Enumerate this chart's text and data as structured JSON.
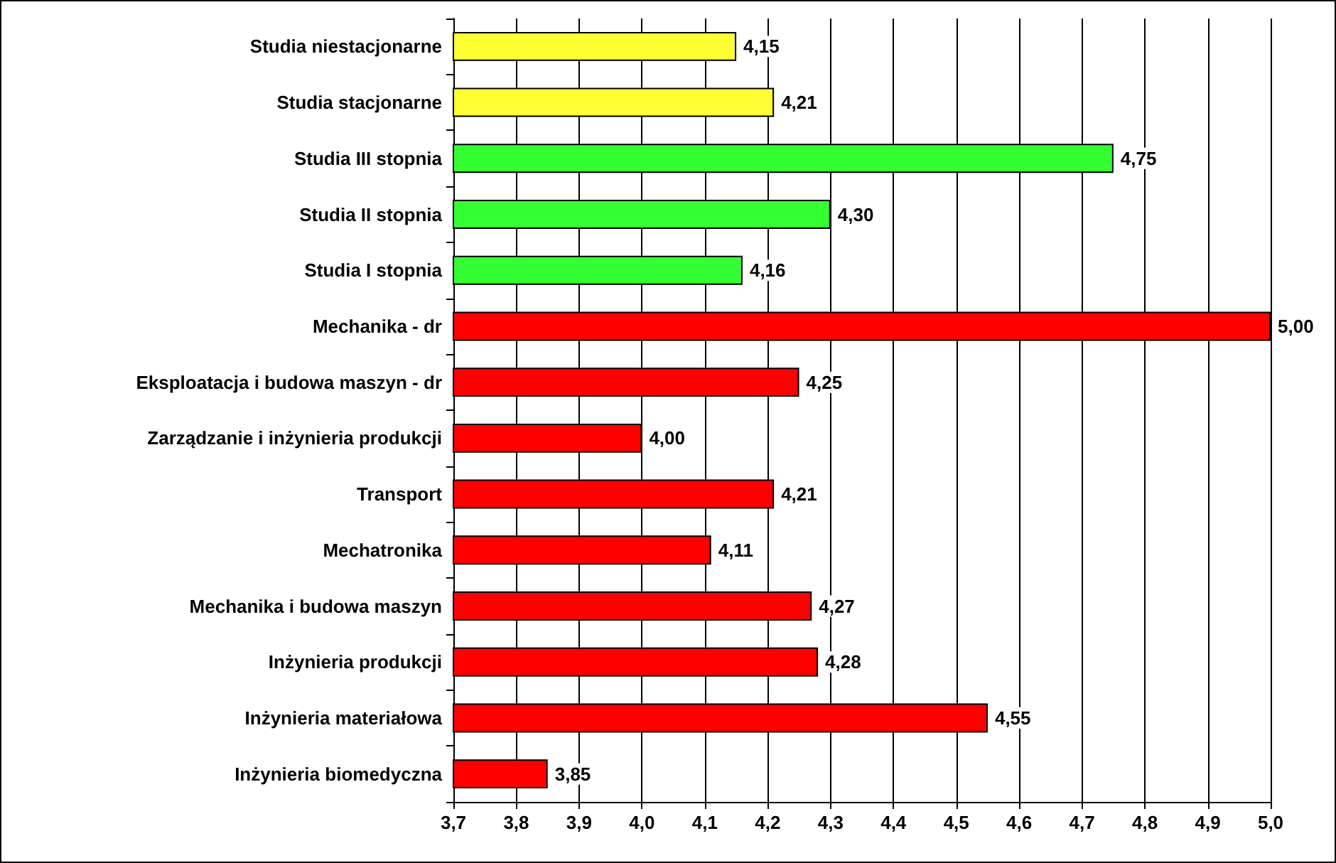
{
  "chart_data": {
    "type": "bar",
    "orientation": "horizontal",
    "categories": [
      "Studia niestacjonarne",
      "Studia stacjonarne",
      "Studia III stopnia",
      "Studia II stopnia",
      "Studia I stopnia",
      "Mechanika - dr",
      "Eksploatacja i budowa maszyn - dr",
      "Zarządzanie i inżynieria produkcji",
      "Transport",
      "Mechatronika",
      "Mechanika i budowa maszyn",
      "Inżynieria produkcji",
      "Inżynieria materiałowa",
      "Inżynieria biomedyczna"
    ],
    "values": [
      4.15,
      4.21,
      4.75,
      4.3,
      4.16,
      5.0,
      4.25,
      4.0,
      4.21,
      4.11,
      4.27,
      4.28,
      4.55,
      3.85
    ],
    "value_labels": [
      "4,15",
      "4,21",
      "4,75",
      "4,30",
      "4,16",
      "5,00",
      "4,25",
      "4,00",
      "4,21",
      "4,11",
      "4,27",
      "4,28",
      "4,55",
      "3,85"
    ],
    "colors": [
      "#ffff33",
      "#ffff33",
      "#33ff33",
      "#33ff33",
      "#33ff33",
      "#ff0000",
      "#ff0000",
      "#ff0000",
      "#ff0000",
      "#ff0000",
      "#ff0000",
      "#ff0000",
      "#ff0000",
      "#ff0000"
    ],
    "xlim": [
      3.7,
      5.0
    ],
    "xticks": [
      {
        "value": 3.7,
        "label": "3,7"
      },
      {
        "value": 3.8,
        "label": "3,8"
      },
      {
        "value": 3.9,
        "label": "3,9"
      },
      {
        "value": 4.0,
        "label": "4,0"
      },
      {
        "value": 4.1,
        "label": "4,1"
      },
      {
        "value": 4.2,
        "label": "4,2"
      },
      {
        "value": 4.3,
        "label": "4,3"
      },
      {
        "value": 4.4,
        "label": "4,4"
      },
      {
        "value": 4.5,
        "label": "4,5"
      },
      {
        "value": 4.6,
        "label": "4,6"
      },
      {
        "value": 4.7,
        "label": "4,7"
      },
      {
        "value": 4.8,
        "label": "4,8"
      },
      {
        "value": 4.9,
        "label": "4,9"
      },
      {
        "value": 5.0,
        "label": "5,0"
      }
    ],
    "grid": "x"
  }
}
